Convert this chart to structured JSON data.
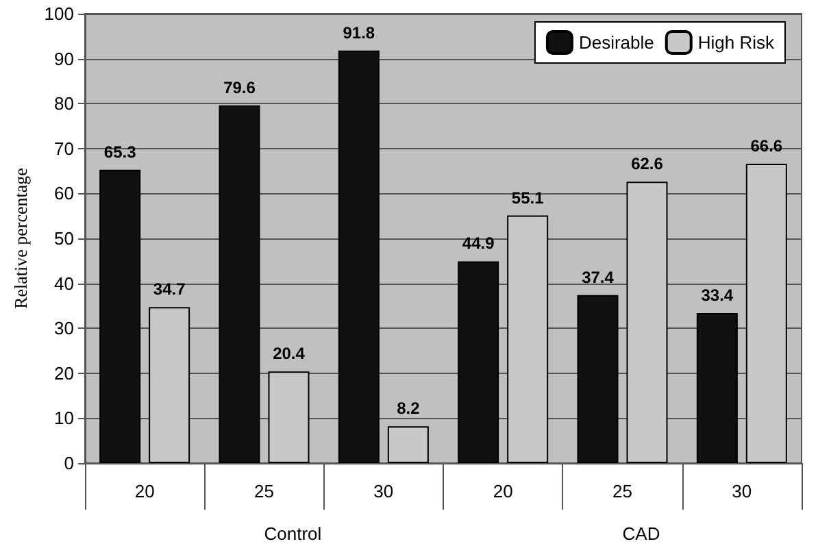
{
  "chart_data": {
    "type": "bar",
    "ylabel": "Relative percentage",
    "categories": [
      "20",
      "25",
      "30",
      "20",
      "25",
      "30"
    ],
    "series": [
      {
        "name": "Desirable",
        "color": "#111111",
        "values": [
          65.3,
          79.6,
          91.8,
          44.9,
          37.4,
          33.4
        ]
      },
      {
        "name": "High Risk",
        "color": "#c8c8c8",
        "values": [
          34.7,
          20.4,
          8.2,
          55.1,
          62.6,
          66.6
        ]
      }
    ],
    "ylim": [
      0,
      100
    ],
    "yticks": [
      0,
      10,
      20,
      30,
      40,
      50,
      60,
      70,
      80,
      90,
      100
    ],
    "grid": "y",
    "legend": "top right",
    "data_labels": true,
    "annotations": [
      "Control",
      "CAD"
    ]
  }
}
